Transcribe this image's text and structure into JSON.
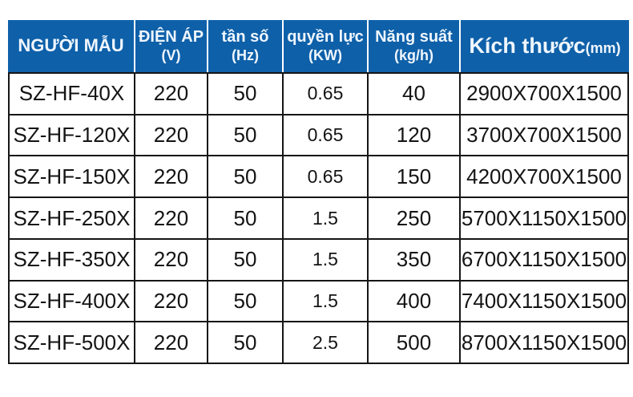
{
  "table": {
    "columns": [
      {
        "id": "model",
        "label": "NGƯỜI MẪU",
        "sub": ""
      },
      {
        "id": "voltage",
        "label": "ĐIỆN ÁP",
        "sub": "(V)"
      },
      {
        "id": "frequency",
        "label": "tần số",
        "sub": "(Hz)"
      },
      {
        "id": "power",
        "label": "quyền lực",
        "sub": "(KW)"
      },
      {
        "id": "capacity",
        "label": "Năng suất",
        "sub": "(kg/h)"
      },
      {
        "id": "dimensions",
        "label": "Kích thước",
        "sub": "(mm)"
      }
    ],
    "rows": [
      [
        "SZ-HF-40X",
        "220",
        "50",
        "0.65",
        "40",
        "2900X700X1500"
      ],
      [
        "SZ-HF-120X",
        "220",
        "50",
        "0.65",
        "120",
        "3700X700X1500"
      ],
      [
        "SZ-HF-150X",
        "220",
        "50",
        "0.65",
        "150",
        "4200X700X1500"
      ],
      [
        "SZ-HF-250X",
        "220",
        "50",
        "1.5",
        "250",
        "5700X1150X1500"
      ],
      [
        "SZ-HF-350X",
        "220",
        "50",
        "1.5",
        "350",
        "6700X1150X1500"
      ],
      [
        "SZ-HF-400X",
        "220",
        "50",
        "1.5",
        "400",
        "7400X1150X1500"
      ],
      [
        "SZ-HF-500X",
        "220",
        "50",
        "2.5",
        "500",
        "8700X1150X1500"
      ]
    ]
  },
  "colors": {
    "header_bg": "#0E60A9",
    "header_text": "#EFF6FD",
    "body_text": "#141414",
    "border": "#161616",
    "background": "#FFFFFF"
  }
}
